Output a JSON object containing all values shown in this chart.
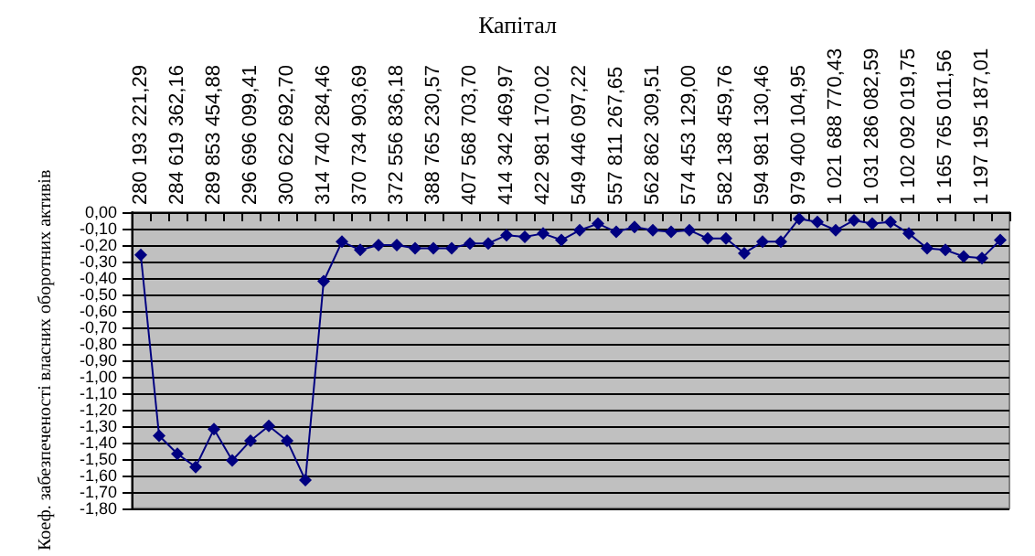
{
  "chart_data": {
    "type": "line",
    "title": "Капітал",
    "ylabel": "Коеф. забезпеченості власних оборотних активів",
    "categories": [
      "280 193 221,29",
      null,
      "284 619 362,16",
      null,
      "289 853 454,88",
      null,
      "296 696 099,41",
      null,
      "300 622 692,70",
      null,
      "314 740 284,46",
      null,
      "370 734 903,69",
      null,
      "372 556 836,18",
      null,
      "388 765 230,57",
      null,
      "407 568 703,70",
      null,
      "414 342 469,97",
      null,
      "422 981 170,02",
      null,
      "549 446 097,22",
      null,
      "557 811 267,65",
      null,
      "562 862 309,51",
      null,
      "574 453 129,00",
      null,
      "582 138 459,76",
      null,
      "594 981 130,46",
      null,
      "979 400 104,95",
      null,
      "1 021 688 770,43",
      null,
      "1 031 286 082,59",
      null,
      "1 102 092 019,75",
      null,
      "1 165 765 011,56",
      null,
      "1 197 195 187,01",
      null
    ],
    "series": [
      {
        "color": "#000080",
        "values": [
          -0.26,
          -1.36,
          -1.47,
          -1.55,
          -1.32,
          -1.51,
          -1.39,
          -1.3,
          -1.39,
          -1.63,
          -0.42,
          -0.18,
          -0.23,
          -0.2,
          -0.2,
          -0.22,
          -0.22,
          -0.22,
          -0.19,
          -0.19,
          -0.14,
          -0.15,
          -0.13,
          -0.17,
          -0.11,
          -0.07,
          -0.12,
          -0.09,
          -0.11,
          -0.12,
          -0.11,
          -0.16,
          -0.16,
          -0.25,
          -0.18,
          -0.18,
          -0.04,
          -0.06,
          -0.11,
          -0.05,
          -0.07,
          -0.06,
          -0.13,
          -0.22,
          -0.23,
          -0.27,
          -0.28,
          -0.17
        ]
      }
    ],
    "ylim": [
      -1.8,
      0
    ],
    "yticks": [
      {
        "value": 0,
        "label": "0,00"
      },
      {
        "value": -0.1,
        "label": "-0,10"
      },
      {
        "value": -0.2,
        "label": "-0,20"
      },
      {
        "value": -0.3,
        "label": "-0,30"
      },
      {
        "value": -0.4,
        "label": "-0,40"
      },
      {
        "value": -0.5,
        "label": "-0,50"
      },
      {
        "value": -0.6,
        "label": "-0,60"
      },
      {
        "value": -0.7,
        "label": "-0,70"
      },
      {
        "value": -0.8,
        "label": "-0,80"
      },
      {
        "value": -0.9,
        "label": "-0,90"
      },
      {
        "value": -1.0,
        "label": "-1,00"
      },
      {
        "value": -1.1,
        "label": "-1,10"
      },
      {
        "value": -1.2,
        "label": "-1,20"
      },
      {
        "value": -1.3,
        "label": "-1,30"
      },
      {
        "value": -1.4,
        "label": "-1,40"
      },
      {
        "value": -1.5,
        "label": "-1,50"
      },
      {
        "value": -1.6,
        "label": "-1,60"
      },
      {
        "value": -1.7,
        "label": "-1,70"
      },
      {
        "value": -1.8,
        "label": "-1,80"
      }
    ],
    "grid": "y",
    "marker": "diamond",
    "line_style": "solid"
  }
}
